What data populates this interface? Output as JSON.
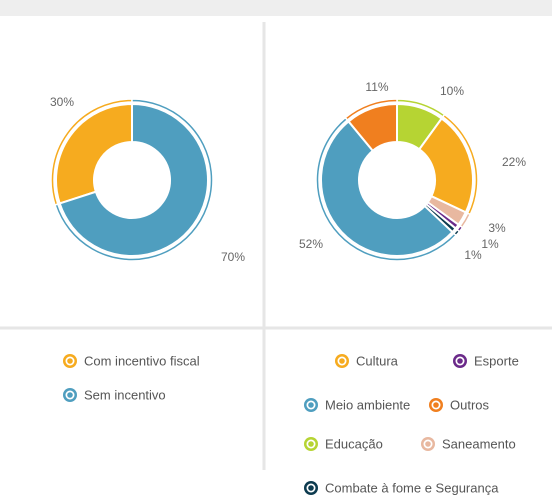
{
  "chart_data": [
    {
      "type": "pie",
      "categories": [
        "Com incentivo fiscal",
        "Sem incentivo"
      ],
      "values": [
        30,
        70
      ],
      "value_labels": [
        "30%",
        "70%"
      ],
      "colors": [
        "#f6ab1f",
        "#4f9ebf"
      ]
    },
    {
      "type": "pie",
      "categories": [
        "Educação",
        "Cultura",
        "Saneamento",
        "Esporte",
        "Combate à fome e Segurança",
        "Meio ambiente",
        "Outros"
      ],
      "values": [
        10,
        22,
        3,
        1,
        1,
        52,
        11
      ],
      "value_labels": [
        "10%",
        "22%",
        "3%",
        "1%",
        "1%",
        "52%",
        "11%"
      ],
      "colors": [
        "#b6d433",
        "#f6ab1f",
        "#e8b8a0",
        "#6b2a8a",
        "#0d3b4f",
        "#4f9ebf",
        "#f07f1f"
      ]
    }
  ]
}
